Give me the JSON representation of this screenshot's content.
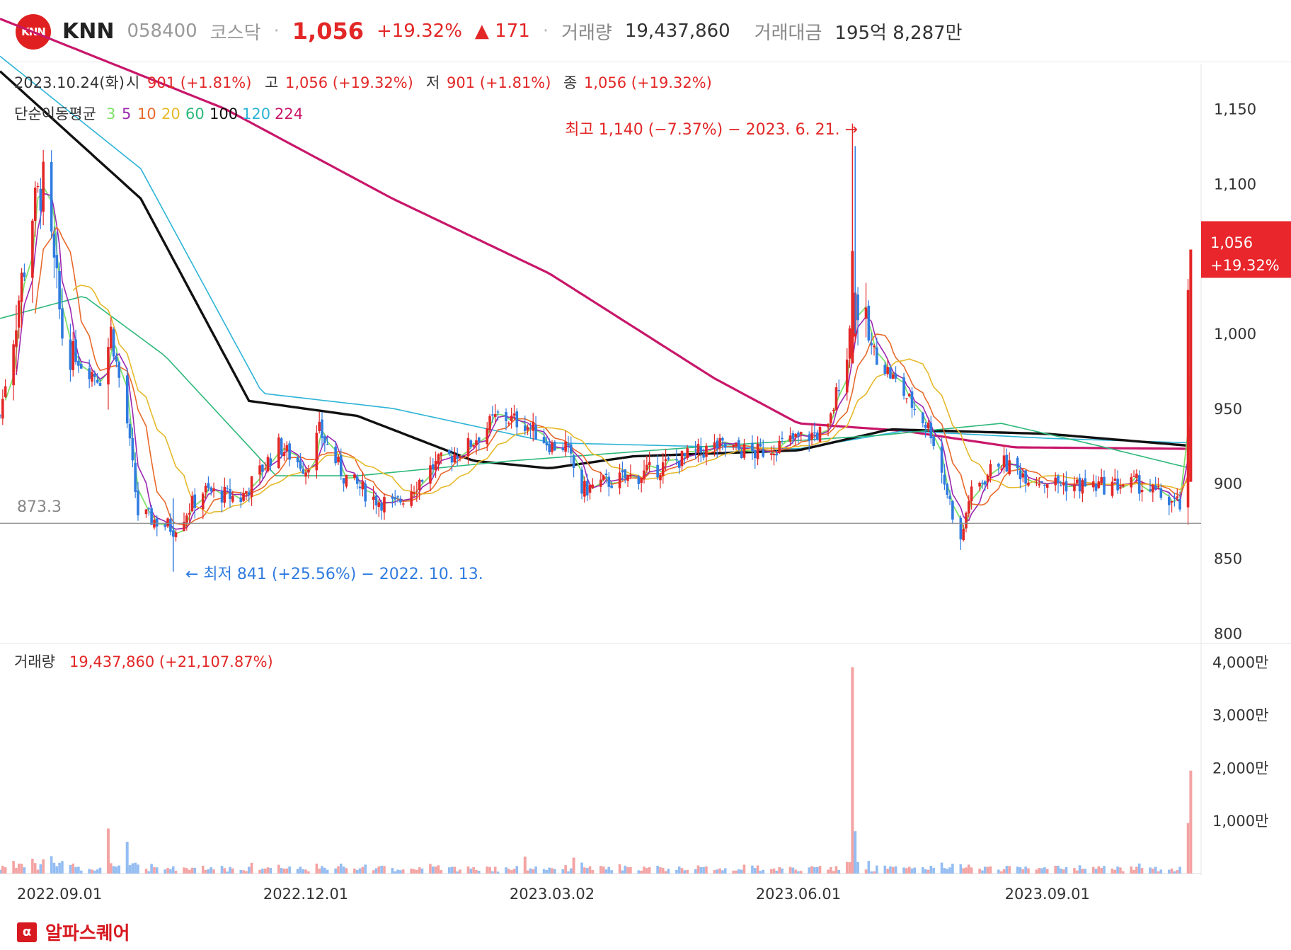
{
  "header": {
    "logo_text": "KNN",
    "name": "KNN",
    "code": "058400",
    "market": "코스닥",
    "price": "1,056",
    "change_pct": "+19.32%",
    "change_abs": "▲ 171",
    "volume_label": "거래량",
    "volume_value": "19,437,860",
    "amount_label": "거래대금",
    "amount_value": "195억 8,287만"
  },
  "ohlc": {
    "date": "2023.10.24(화)",
    "open_label": "시",
    "open_value": "901 (+1.81%)",
    "high_label": "고",
    "high_value": "1,056 (+19.32%)",
    "low_label": "저",
    "low_value": "901 (+1.81%)",
    "close_label": "종",
    "close_value": "1,056 (+19.32%)"
  },
  "ma_legend": {
    "label": "단순이동평균",
    "items": [
      {
        "text": "3",
        "color": "#7fe06a"
      },
      {
        "text": "5",
        "color": "#9b27b0"
      },
      {
        "text": "10",
        "color": "#e8692a"
      },
      {
        "text": "20",
        "color": "#e6b92a"
      },
      {
        "text": "60",
        "color": "#2db87a"
      },
      {
        "text": "100",
        "color": "#111111"
      },
      {
        "text": "120",
        "color": "#2bb3d6"
      },
      {
        "text": "224",
        "color": "#c8176a"
      }
    ]
  },
  "annotations": {
    "high_note": "최고 1,140 (−7.37%) − 2023. 6. 21. →",
    "low_note": "← 최저 841 (+25.56%) − 2022. 10. 13.",
    "ref_line_label": "873.3",
    "price_tag_value": "1,056",
    "price_tag_pct": "+19.32%"
  },
  "volume_panel": {
    "label": "거래량",
    "value": "19,437,860 (+21,107.87%)"
  },
  "brand": {
    "icon": "α",
    "name": "알파스퀘어"
  },
  "colors": {
    "up": "#e32727",
    "down": "#2f7be0",
    "tag_bg": "#e8262b",
    "vol_up": "#f4a3a3",
    "vol_down": "#94bdf2"
  },
  "chart_data": {
    "type": "candlestick",
    "price_axis": {
      "ticks": [
        800,
        850,
        900,
        950,
        1000,
        1050,
        1100,
        1150
      ],
      "tick_labels": [
        "800",
        "850",
        "900",
        "950",
        "1,000",
        "",
        "1,100",
        "1,150"
      ],
      "range": [
        795,
        1180
      ]
    },
    "volume_axis": {
      "ticks": [
        10000000,
        20000000,
        30000000,
        40000000
      ],
      "tick_labels": [
        "1,000만",
        "2,000만",
        "3,000만",
        "4,000만"
      ],
      "range": [
        0,
        42000000
      ]
    },
    "x_ticks": [
      {
        "date": "2022-09-01",
        "label": "2022.09.01"
      },
      {
        "date": "2022-12-01",
        "label": "2022.12.01"
      },
      {
        "date": "2023-03-02",
        "label": "2023.03.02"
      },
      {
        "date": "2023-06-01",
        "label": "2023.06.01"
      },
      {
        "date": "2023-09-01",
        "label": "2023.09.01"
      }
    ],
    "x_range": [
      "2022-08-10",
      "2023-10-26"
    ],
    "reference_line": 873.3,
    "highest": {
      "date": "2023-06-21",
      "value": 1140
    },
    "lowest": {
      "date": "2022-10-13",
      "value": 841
    },
    "last": {
      "date": "2023-10-24",
      "open": 901,
      "high": 1056,
      "low": 901,
      "close": 1056,
      "volume": 19437860
    },
    "price_path": [
      [
        "2022-08-10",
        945
      ],
      [
        "2022-08-22",
        1080
      ],
      [
        "2022-08-26",
        1100
      ],
      [
        "2022-09-02",
        1000
      ],
      [
        "2022-09-09",
        980
      ],
      [
        "2022-09-16",
        970
      ],
      [
        "2022-09-20",
        1000
      ],
      [
        "2022-09-26",
        940
      ],
      [
        "2022-09-30",
        880
      ],
      [
        "2022-10-13",
        870
      ],
      [
        "2022-10-24",
        895
      ],
      [
        "2022-11-07",
        890
      ],
      [
        "2022-11-21",
        925
      ],
      [
        "2022-12-01",
        910
      ],
      [
        "2022-12-06",
        935
      ],
      [
        "2022-12-15",
        905
      ],
      [
        "2022-12-26",
        890
      ],
      [
        "2023-01-03",
        885
      ],
      [
        "2023-01-16",
        910
      ],
      [
        "2023-01-30",
        925
      ],
      [
        "2023-02-10",
        945
      ],
      [
        "2023-02-20",
        940
      ],
      [
        "2023-03-02",
        925
      ],
      [
        "2023-03-07",
        925
      ],
      [
        "2023-03-13",
        895
      ],
      [
        "2023-03-20",
        900
      ],
      [
        "2023-04-03",
        905
      ],
      [
        "2023-04-17",
        915
      ],
      [
        "2023-05-02",
        925
      ],
      [
        "2023-05-16",
        920
      ],
      [
        "2023-06-01",
        930
      ],
      [
        "2023-06-12",
        935
      ],
      [
        "2023-06-20",
        1000
      ],
      [
        "2023-06-22",
        1025
      ],
      [
        "2023-06-28",
        990
      ],
      [
        "2023-07-10",
        960
      ],
      [
        "2023-07-20",
        935
      ],
      [
        "2023-07-31",
        860
      ],
      [
        "2023-08-03",
        890
      ],
      [
        "2023-08-14",
        915
      ],
      [
        "2023-08-25",
        905
      ],
      [
        "2023-09-04",
        900
      ],
      [
        "2023-09-18",
        898
      ],
      [
        "2023-10-04",
        900
      ],
      [
        "2023-10-20",
        885
      ],
      [
        "2023-10-24",
        1056
      ]
    ],
    "ma_series": [
      {
        "period": 224,
        "values": [
          [
            "2022-08-10",
            1210
          ],
          [
            "2022-11-01",
            1150
          ],
          [
            "2023-01-02",
            1090
          ],
          [
            "2023-03-01",
            1040
          ],
          [
            "2023-05-01",
            970
          ],
          [
            "2023-06-01",
            940
          ],
          [
            "2023-07-10",
            935
          ],
          [
            "2023-08-20",
            924
          ],
          [
            "2023-10-24",
            923
          ]
        ]
      },
      {
        "period": 120,
        "values": [
          [
            "2022-08-10",
            1185
          ],
          [
            "2022-10-01",
            1110
          ],
          [
            "2022-11-15",
            960
          ],
          [
            "2023-01-02",
            950
          ],
          [
            "2023-03-02",
            927
          ],
          [
            "2023-06-01",
            923
          ],
          [
            "2023-07-10",
            935
          ],
          [
            "2023-09-01",
            930
          ],
          [
            "2023-10-24",
            927
          ]
        ]
      },
      {
        "period": 100,
        "values": [
          [
            "2022-08-10",
            1175
          ],
          [
            "2022-10-01",
            1090
          ],
          [
            "2022-11-10",
            955
          ],
          [
            "2022-12-20",
            945
          ],
          [
            "2023-02-01",
            915
          ],
          [
            "2023-03-01",
            910
          ],
          [
            "2023-04-01",
            918
          ],
          [
            "2023-06-01",
            922
          ],
          [
            "2023-07-05",
            936
          ],
          [
            "2023-09-01",
            933
          ],
          [
            "2023-10-24",
            925
          ]
        ]
      },
      {
        "period": 60,
        "values": [
          [
            "2022-08-10",
            1010
          ],
          [
            "2022-09-10",
            1025
          ],
          [
            "2022-10-10",
            985
          ],
          [
            "2022-11-20",
            905
          ],
          [
            "2022-12-20",
            905
          ],
          [
            "2023-02-15",
            915
          ],
          [
            "2023-05-01",
            925
          ],
          [
            "2023-07-01",
            932
          ],
          [
            "2023-08-15",
            940
          ],
          [
            "2023-09-20",
            925
          ],
          [
            "2023-10-24",
            910
          ]
        ]
      }
    ]
  }
}
